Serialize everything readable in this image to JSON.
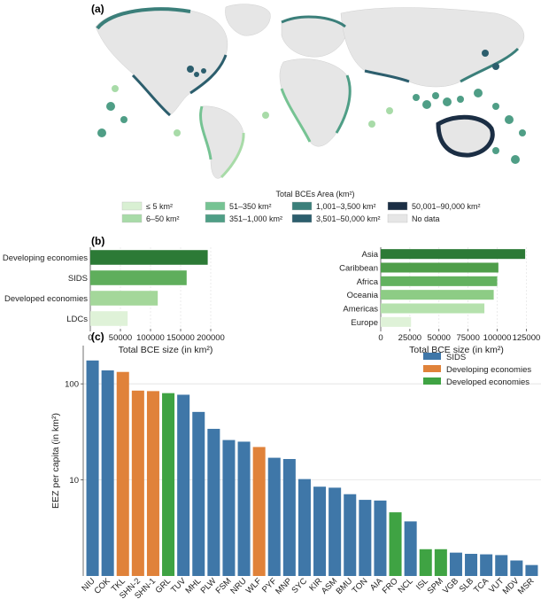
{
  "panel_a": {
    "label": "(a)",
    "legend_title": "Total BCEs Area (km²)",
    "legend": [
      {
        "label": "≤ 5 km²",
        "color": "#d9f0d3"
      },
      {
        "label": "6–50 km²",
        "color": "#a8dba8"
      },
      {
        "label": "51–350 km²",
        "color": "#76c393"
      },
      {
        "label": "351–1,000 km²",
        "color": "#4f9e86"
      },
      {
        "label": "1,001–3,500 km²",
        "color": "#3b7f7a"
      },
      {
        "label": "3,501–50,000 km²",
        "color": "#2c5e6d"
      },
      {
        "label": "50,001–90,000 km²",
        "color": "#1b2e44"
      },
      {
        "label": "No data",
        "color": "#e6e6e6"
      }
    ]
  },
  "panel_b": {
    "label": "(b)"
  },
  "panel_c": {
    "label": "(c)"
  },
  "chart_data": [
    {
      "type": "bar",
      "orientation": "horizontal",
      "categories": [
        "Developing economies",
        "SIDS",
        "Developed economies",
        "LDCs"
      ],
      "values": [
        195000,
        160000,
        112000,
        62000
      ],
      "colors": [
        "#2c7a36",
        "#5fae5c",
        "#a4d79a",
        "#dff2d8"
      ],
      "xlabel": "Total BCE size (in km²)",
      "xlim": [
        0,
        250000
      ],
      "xticks": [
        0,
        50000,
        100000,
        150000,
        200000
      ],
      "xtick_labels": [
        "0",
        "50000",
        "100000",
        "150000",
        "200000"
      ],
      "grid": true
    },
    {
      "type": "bar",
      "orientation": "horizontal",
      "categories": [
        "Asia",
        "Caribbean",
        "Africa",
        "Oceania",
        "Americas",
        "Europe"
      ],
      "values": [
        124000,
        101000,
        100000,
        97000,
        89000,
        26000
      ],
      "colors": [
        "#2c7a36",
        "#4f9e4a",
        "#63b25f",
        "#8dcc85",
        "#b5e1ad",
        "#dff2d8"
      ],
      "xlabel": "Total BCE size (in km²)",
      "xlim": [
        0,
        130000
      ],
      "xticks": [
        0,
        25000,
        50000,
        75000,
        100000,
        125000
      ],
      "xtick_labels": [
        "0",
        "25000",
        "50000",
        "75000",
        "100000",
        "125000"
      ],
      "grid": true
    },
    {
      "type": "bar",
      "categories": [
        "NIU",
        "COK",
        "TKL",
        "SHN-2",
        "SHN-1",
        "GRL",
        "TUV",
        "MHL",
        "PLW",
        "FSM",
        "NRU",
        "WLF",
        "PYF",
        "MNP",
        "SYC",
        "KIR",
        "ASM",
        "BMU",
        "TON",
        "AIA",
        "FRO",
        "NCL",
        "ISL",
        "SPM",
        "VGB",
        "SLB",
        "TCA",
        "VUT",
        "MDV",
        "MSR"
      ],
      "values": [
        175,
        138,
        133,
        85,
        84,
        80,
        77,
        51,
        34,
        26,
        25,
        22,
        17,
        16.5,
        10.2,
        8.5,
        8.3,
        7.1,
        6.2,
        6.1,
        4.6,
        3.7,
        1.9,
        1.9,
        1.75,
        1.7,
        1.68,
        1.65,
        1.45,
        1.3
      ],
      "groups": [
        "SIDS",
        "SIDS",
        "Developing economies",
        "Developing economies",
        "Developing economies",
        "Developed economies",
        "SIDS",
        "SIDS",
        "SIDS",
        "SIDS",
        "SIDS",
        "Developing economies",
        "SIDS",
        "SIDS",
        "SIDS",
        "SIDS",
        "SIDS",
        "SIDS",
        "SIDS",
        "SIDS",
        "Developed economies",
        "SIDS",
        "Developed economies",
        "Developed economies",
        "SIDS",
        "SIDS",
        "SIDS",
        "SIDS",
        "SIDS",
        "SIDS"
      ],
      "ylabel": "EEZ per capita (in km²)",
      "yscale": "log",
      "ylim": [
        1,
        250
      ],
      "yticks": [
        10,
        100
      ],
      "ytick_labels": [
        "10",
        "100"
      ],
      "legend": [
        {
          "name": "SIDS",
          "color": "#3f77a8"
        },
        {
          "name": "Developing economies",
          "color": "#e0823a"
        },
        {
          "name": "Developed economies",
          "color": "#3fa343"
        }
      ],
      "legend_position": "top-right",
      "grid": true
    }
  ]
}
